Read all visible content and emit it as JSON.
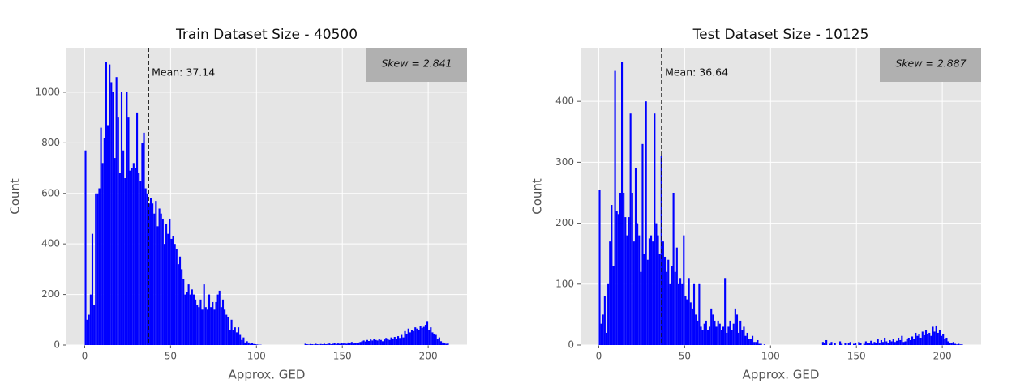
{
  "chart_data": [
    {
      "type": "histogram",
      "title": "Train Dataset Size - 40500",
      "xlabel": "Approx. GED",
      "ylabel": "Count",
      "color": "#0000ff",
      "grid": true,
      "mean": 37.14,
      "mean_label": "Mean: 37.14",
      "skew_label": "Skew = 2.841",
      "xlim": [
        -10.6,
        222.6
      ],
      "xticks": [
        0,
        50,
        100,
        150,
        200
      ],
      "ylim": [
        0,
        1176
      ],
      "yticks": [
        0,
        200,
        400,
        600,
        800,
        1000
      ],
      "bins": [
        0,
        1,
        2,
        3,
        4,
        5,
        6,
        7,
        8,
        9,
        10,
        11,
        12,
        13,
        14,
        15,
        16,
        17,
        18,
        19,
        20,
        21,
        22,
        23,
        24,
        25,
        26,
        27,
        28,
        29,
        30,
        31,
        32,
        33,
        34,
        35,
        36,
        37,
        38,
        39,
        40,
        41,
        42,
        43,
        44,
        45,
        46,
        47,
        48,
        49,
        50,
        51,
        52,
        53,
        54,
        55,
        56,
        57,
        58,
        59,
        60,
        61,
        62,
        63,
        64,
        65,
        66,
        67,
        68,
        69,
        70,
        71,
        72,
        73,
        74,
        75,
        76,
        77,
        78,
        79,
        80,
        81,
        82,
        83,
        84,
        85,
        86,
        87,
        88,
        89,
        90,
        91,
        92,
        93,
        94,
        95,
        96,
        97,
        98,
        99,
        100,
        101,
        102,
        103,
        104,
        105,
        106,
        107,
        108,
        109,
        110,
        111,
        112,
        113,
        114,
        115,
        116,
        117,
        118,
        119,
        120,
        121,
        122,
        123,
        124,
        125,
        126,
        127,
        128,
        129,
        130,
        131,
        132,
        133,
        134,
        135,
        136,
        137,
        138,
        139,
        140,
        141,
        142,
        143,
        144,
        145,
        146,
        147,
        148,
        149,
        150,
        151,
        152,
        153,
        154,
        155,
        156,
        157,
        158,
        159,
        160,
        161,
        162,
        163,
        164,
        165,
        166,
        167,
        168,
        169,
        170,
        171,
        172,
        173,
        174,
        175,
        176,
        177,
        178,
        179,
        180,
        181,
        182,
        183,
        184,
        185,
        186,
        187,
        188,
        189,
        190,
        191,
        192,
        193,
        194,
        195,
        196,
        197,
        198,
        199,
        200,
        201,
        202,
        203,
        204,
        205,
        206,
        207,
        208,
        209,
        210,
        211,
        212
      ],
      "values": [
        770,
        100,
        120,
        200,
        440,
        160,
        600,
        600,
        620,
        860,
        720,
        820,
        1120,
        870,
        1110,
        1040,
        1000,
        740,
        1060,
        900,
        680,
        1000,
        770,
        660,
        1000,
        900,
        690,
        700,
        720,
        700,
        920,
        680,
        650,
        800,
        840,
        620,
        600,
        560,
        580,
        560,
        520,
        570,
        470,
        540,
        520,
        500,
        400,
        480,
        440,
        500,
        420,
        430,
        400,
        380,
        320,
        350,
        300,
        260,
        200,
        210,
        240,
        200,
        220,
        200,
        180,
        160,
        150,
        180,
        140,
        240,
        150,
        140,
        200,
        150,
        170,
        140,
        170,
        200,
        215,
        150,
        180,
        140,
        120,
        110,
        60,
        100,
        60,
        70,
        50,
        70,
        40,
        20,
        30,
        10,
        15,
        10,
        5,
        8,
        4,
        3,
        2,
        1,
        1,
        0,
        0,
        0,
        0,
        0,
        0,
        0,
        0,
        0,
        0,
        0,
        0,
        0,
        0,
        0,
        0,
        0,
        0,
        0,
        0,
        0,
        0,
        0,
        0,
        0,
        5,
        3,
        2,
        4,
        3,
        2,
        5,
        3,
        2,
        4,
        3,
        5,
        3,
        4,
        6,
        3,
        5,
        8,
        4,
        6,
        5,
        7,
        6,
        8,
        5,
        10,
        7,
        12,
        6,
        9,
        8,
        10,
        12,
        15,
        18,
        14,
        20,
        16,
        22,
        18,
        25,
        20,
        18,
        25,
        20,
        15,
        22,
        28,
        24,
        20,
        30,
        26,
        32,
        25,
        35,
        28,
        40,
        30,
        55,
        45,
        65,
        50,
        60,
        55,
        70,
        65,
        60,
        75,
        68,
        72,
        80,
        95,
        60,
        70,
        50,
        45,
        40,
        25,
        30,
        15,
        10,
        8,
        5,
        6
      ]
    },
    {
      "type": "histogram",
      "title": "Test Dataset Size - 10125",
      "xlabel": "Approx. GED",
      "ylabel": "Count",
      "color": "#0000ff",
      "grid": true,
      "mean": 36.64,
      "mean_label": "Mean: 36.64",
      "skew_label": "Skew = 2.887",
      "xlim": [
        -10.6,
        222.6
      ],
      "xticks": [
        0,
        50,
        100,
        150,
        200
      ],
      "ylim": [
        0,
        488
      ],
      "yticks": [
        0,
        100,
        200,
        300,
        400
      ],
      "bins": [
        0,
        1,
        2,
        3,
        4,
        5,
        6,
        7,
        8,
        9,
        10,
        11,
        12,
        13,
        14,
        15,
        16,
        17,
        18,
        19,
        20,
        21,
        22,
        23,
        24,
        25,
        26,
        27,
        28,
        29,
        30,
        31,
        32,
        33,
        34,
        35,
        36,
        37,
        38,
        39,
        40,
        41,
        42,
        43,
        44,
        45,
        46,
        47,
        48,
        49,
        50,
        51,
        52,
        53,
        54,
        55,
        56,
        57,
        58,
        59,
        60,
        61,
        62,
        63,
        64,
        65,
        66,
        67,
        68,
        69,
        70,
        71,
        72,
        73,
        74,
        75,
        76,
        77,
        78,
        79,
        80,
        81,
        82,
        83,
        84,
        85,
        86,
        87,
        88,
        89,
        90,
        91,
        92,
        93,
        94,
        95,
        96,
        97,
        98,
        99,
        100,
        101,
        102,
        103,
        104,
        105,
        106,
        107,
        108,
        109,
        110,
        111,
        112,
        113,
        114,
        115,
        116,
        117,
        118,
        119,
        120,
        121,
        122,
        123,
        124,
        125,
        126,
        127,
        128,
        129,
        130,
        131,
        132,
        133,
        134,
        135,
        136,
        137,
        138,
        139,
        140,
        141,
        142,
        143,
        144,
        145,
        146,
        147,
        148,
        149,
        150,
        151,
        152,
        153,
        154,
        155,
        156,
        157,
        158,
        159,
        160,
        161,
        162,
        163,
        164,
        165,
        166,
        167,
        168,
        169,
        170,
        171,
        172,
        173,
        174,
        175,
        176,
        177,
        178,
        179,
        180,
        181,
        182,
        183,
        184,
        185,
        186,
        187,
        188,
        189,
        190,
        191,
        192,
        193,
        194,
        195,
        196,
        197,
        198,
        199,
        200,
        201,
        202,
        203,
        204,
        205,
        206,
        207,
        208,
        209,
        210,
        211,
        212
      ],
      "values": [
        255,
        35,
        50,
        80,
        20,
        100,
        170,
        230,
        130,
        450,
        220,
        215,
        250,
        465,
        250,
        210,
        180,
        210,
        380,
        250,
        170,
        290,
        200,
        180,
        120,
        330,
        150,
        400,
        140,
        175,
        180,
        170,
        380,
        200,
        180,
        150,
        310,
        170,
        145,
        120,
        140,
        100,
        130,
        250,
        120,
        160,
        100,
        110,
        100,
        180,
        80,
        75,
        110,
        70,
        60,
        100,
        50,
        40,
        100,
        30,
        25,
        35,
        40,
        25,
        30,
        60,
        50,
        40,
        30,
        40,
        35,
        25,
        30,
        110,
        20,
        30,
        40,
        25,
        35,
        60,
        50,
        20,
        40,
        25,
        30,
        15,
        20,
        10,
        10,
        15,
        5,
        5,
        8,
        2,
        2,
        0,
        1,
        0,
        0,
        0,
        0,
        0,
        0,
        0,
        0,
        0,
        0,
        0,
        0,
        0,
        0,
        0,
        0,
        0,
        0,
        0,
        0,
        0,
        0,
        0,
        0,
        0,
        0,
        0,
        0,
        0,
        0,
        0,
        0,
        0,
        5,
        3,
        8,
        0,
        2,
        5,
        0,
        3,
        0,
        0,
        6,
        2,
        0,
        4,
        0,
        3,
        5,
        0,
        2,
        4,
        0,
        5,
        3,
        0,
        2,
        6,
        4,
        3,
        7,
        2,
        5,
        4,
        10,
        3,
        8,
        5,
        12,
        6,
        4,
        8,
        6,
        10,
        5,
        7,
        12,
        8,
        15,
        5,
        6,
        10,
        12,
        8,
        14,
        10,
        20,
        15,
        18,
        12,
        22,
        16,
        25,
        18,
        20,
        15,
        30,
        22,
        32,
        20,
        25,
        15,
        18,
        10,
        12,
        6,
        4,
        3,
        5,
        2,
        1,
        2,
        1,
        1
      ]
    }
  ]
}
